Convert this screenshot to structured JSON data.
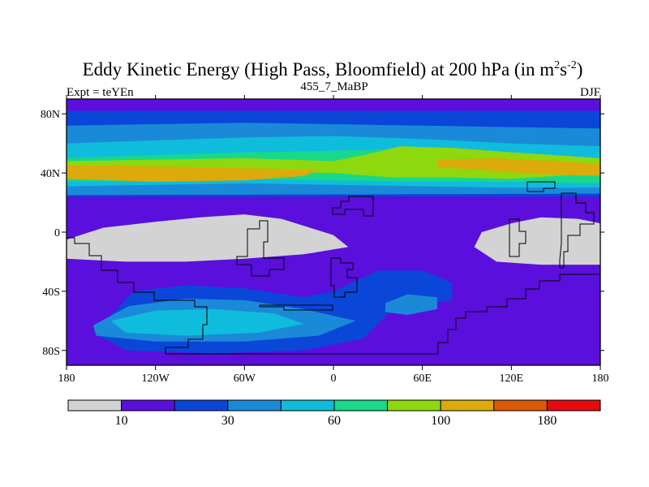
{
  "chart_data": {
    "type": "heatmap",
    "title": "Eddy Kinetic Energy (High Pass, Bloomfield) at 200 hPa (in m",
    "title_unit_sup_1": "2",
    "title_unit_mid": "s",
    "title_unit_sup_2": "-2",
    "title_close": ")",
    "left_string": "Expt = teYEn",
    "center_string": "455_7_MaBP",
    "right_string": "DJF",
    "projection": "cylindrical-equidistant",
    "xlim": [
      -180,
      180
    ],
    "ylim": [
      -90,
      90
    ],
    "x_ticks": [
      {
        "value": -180,
        "label": "180"
      },
      {
        "value": -120,
        "label": "120W"
      },
      {
        "value": -60,
        "label": "60W"
      },
      {
        "value": 0,
        "label": "0"
      },
      {
        "value": 60,
        "label": "60E"
      },
      {
        "value": 120,
        "label": "120E"
      },
      {
        "value": 180,
        "label": "180"
      }
    ],
    "y_ticks": [
      {
        "value": 80,
        "label": "80N"
      },
      {
        "value": 40,
        "label": "40N"
      },
      {
        "value": 0,
        "label": "0"
      },
      {
        "value": -40,
        "label": "40S"
      },
      {
        "value": -80,
        "label": "80S"
      }
    ],
    "colorbar": {
      "colors": [
        "#d3d3d3",
        "#5a0fdc",
        "#0a46d8",
        "#1a8ad8",
        "#10bcdc",
        "#18d88a",
        "#8ed80e",
        "#dcaa0a",
        "#dc5a0a",
        "#e40a10"
      ],
      "labels": [
        {
          "after_box": 1,
          "text": "10"
        },
        {
          "after_box": 3,
          "text": "30"
        },
        {
          "after_box": 5,
          "text": "60"
        },
        {
          "after_box": 7,
          "text": "100"
        },
        {
          "after_box": 9,
          "text": "180"
        }
      ]
    },
    "bands": [
      {
        "level": 1,
        "points": [
          [
            -180,
            90
          ],
          [
            180,
            90
          ],
          [
            180,
            21
          ],
          [
            -180,
            21
          ]
        ]
      },
      {
        "level": 2,
        "points": [
          [
            -180,
            82
          ],
          [
            180,
            82
          ],
          [
            180,
            24
          ],
          [
            -180,
            24
          ]
        ]
      },
      {
        "level": 3,
        "points": [
          [
            -180,
            72
          ],
          [
            -120,
            73
          ],
          [
            -60,
            74
          ],
          [
            0,
            73
          ],
          [
            60,
            72
          ],
          [
            120,
            71
          ],
          [
            180,
            70
          ],
          [
            180,
            26
          ],
          [
            -180,
            25
          ]
        ]
      },
      {
        "level": 4,
        "points": [
          [
            -180,
            60
          ],
          [
            -120,
            62
          ],
          [
            -60,
            64
          ],
          [
            0,
            65
          ],
          [
            60,
            63
          ],
          [
            120,
            60
          ],
          [
            180,
            58
          ],
          [
            180,
            30
          ],
          [
            120,
            30
          ],
          [
            60,
            31
          ],
          [
            0,
            32
          ],
          [
            -60,
            33
          ],
          [
            -120,
            32
          ],
          [
            -180,
            31
          ]
        ]
      },
      {
        "level": 5,
        "points": [
          [
            -180,
            50
          ],
          [
            -120,
            52
          ],
          [
            -60,
            54
          ],
          [
            0,
            55
          ],
          [
            40,
            56
          ],
          [
            80,
            55
          ],
          [
            120,
            52
          ],
          [
            180,
            50
          ],
          [
            180,
            33
          ],
          [
            120,
            34
          ],
          [
            60,
            34
          ],
          [
            0,
            35
          ],
          [
            -60,
            36
          ],
          [
            -120,
            35
          ],
          [
            -180,
            34
          ]
        ]
      },
      {
        "level": 6,
        "points": [
          [
            -180,
            48
          ],
          [
            -60,
            50
          ],
          [
            0,
            48
          ],
          [
            25,
            53
          ],
          [
            45,
            58
          ],
          [
            80,
            57
          ],
          [
            120,
            54
          ],
          [
            180,
            50
          ],
          [
            180,
            40
          ],
          [
            120,
            36
          ],
          [
            80,
            37
          ],
          [
            40,
            37
          ],
          [
            0,
            40
          ],
          [
            -60,
            41
          ],
          [
            -120,
            40
          ],
          [
            -180,
            40
          ]
        ]
      },
      {
        "level": 7,
        "points": [
          [
            -180,
            45
          ],
          [
            -150,
            45
          ],
          [
            -100,
            44
          ],
          [
            -50,
            43
          ],
          [
            -10,
            42
          ],
          [
            -20,
            38
          ],
          [
            -60,
            35
          ],
          [
            -120,
            34
          ],
          [
            -180,
            36
          ]
        ]
      },
      {
        "level": 7,
        "points": [
          [
            70,
            49
          ],
          [
            110,
            50
          ],
          [
            150,
            48
          ],
          [
            180,
            46
          ],
          [
            180,
            38
          ],
          [
            140,
            39
          ],
          [
            100,
            42
          ],
          [
            70,
            44
          ]
        ]
      },
      {
        "level": 0,
        "points": [
          [
            -180,
            -5
          ],
          [
            -155,
            3
          ],
          [
            -120,
            7
          ],
          [
            -90,
            10
          ],
          [
            -60,
            12
          ],
          [
            -35,
            9
          ],
          [
            0,
            -2
          ],
          [
            10,
            -10
          ],
          [
            -20,
            -15
          ],
          [
            -60,
            -18
          ],
          [
            -100,
            -20
          ],
          [
            -140,
            -20
          ],
          [
            -180,
            -18
          ]
        ]
      },
      {
        "level": 0,
        "points": [
          [
            95,
            -10
          ],
          [
            100,
            0
          ],
          [
            120,
            6
          ],
          [
            140,
            10
          ],
          [
            165,
            9
          ],
          [
            180,
            6
          ],
          [
            180,
            -22
          ],
          [
            140,
            -22
          ],
          [
            110,
            -20
          ]
        ]
      },
      {
        "level": 2,
        "points": [
          [
            -135,
            -40
          ],
          [
            -100,
            -36
          ],
          [
            -60,
            -38
          ],
          [
            -20,
            -44
          ],
          [
            0,
            -40
          ],
          [
            30,
            -26
          ],
          [
            60,
            -26
          ],
          [
            80,
            -34
          ],
          [
            80,
            -46
          ],
          [
            40,
            -52
          ],
          [
            20,
            -72
          ],
          [
            -20,
            -80
          ],
          [
            -80,
            -82
          ],
          [
            -140,
            -80
          ],
          [
            -162,
            -68
          ],
          [
            -148,
            -54
          ]
        ]
      },
      {
        "level": 3,
        "points": [
          [
            -162,
            -63
          ],
          [
            -138,
            -50
          ],
          [
            -100,
            -45
          ],
          [
            -60,
            -46
          ],
          [
            -20,
            -52
          ],
          [
            15,
            -60
          ],
          [
            -10,
            -70
          ],
          [
            -60,
            -74
          ],
          [
            -120,
            -74
          ],
          [
            -160,
            -70
          ]
        ]
      },
      {
        "level": 4,
        "points": [
          [
            -150,
            -60
          ],
          [
            -120,
            -53
          ],
          [
            -80,
            -52
          ],
          [
            -40,
            -55
          ],
          [
            -20,
            -62
          ],
          [
            -50,
            -68
          ],
          [
            -100,
            -70
          ],
          [
            -140,
            -68
          ]
        ]
      },
      {
        "level": 3,
        "points": [
          [
            35,
            -48
          ],
          [
            50,
            -42
          ],
          [
            70,
            -44
          ],
          [
            70,
            -52
          ],
          [
            50,
            -56
          ],
          [
            35,
            -54
          ]
        ]
      }
    ]
  }
}
